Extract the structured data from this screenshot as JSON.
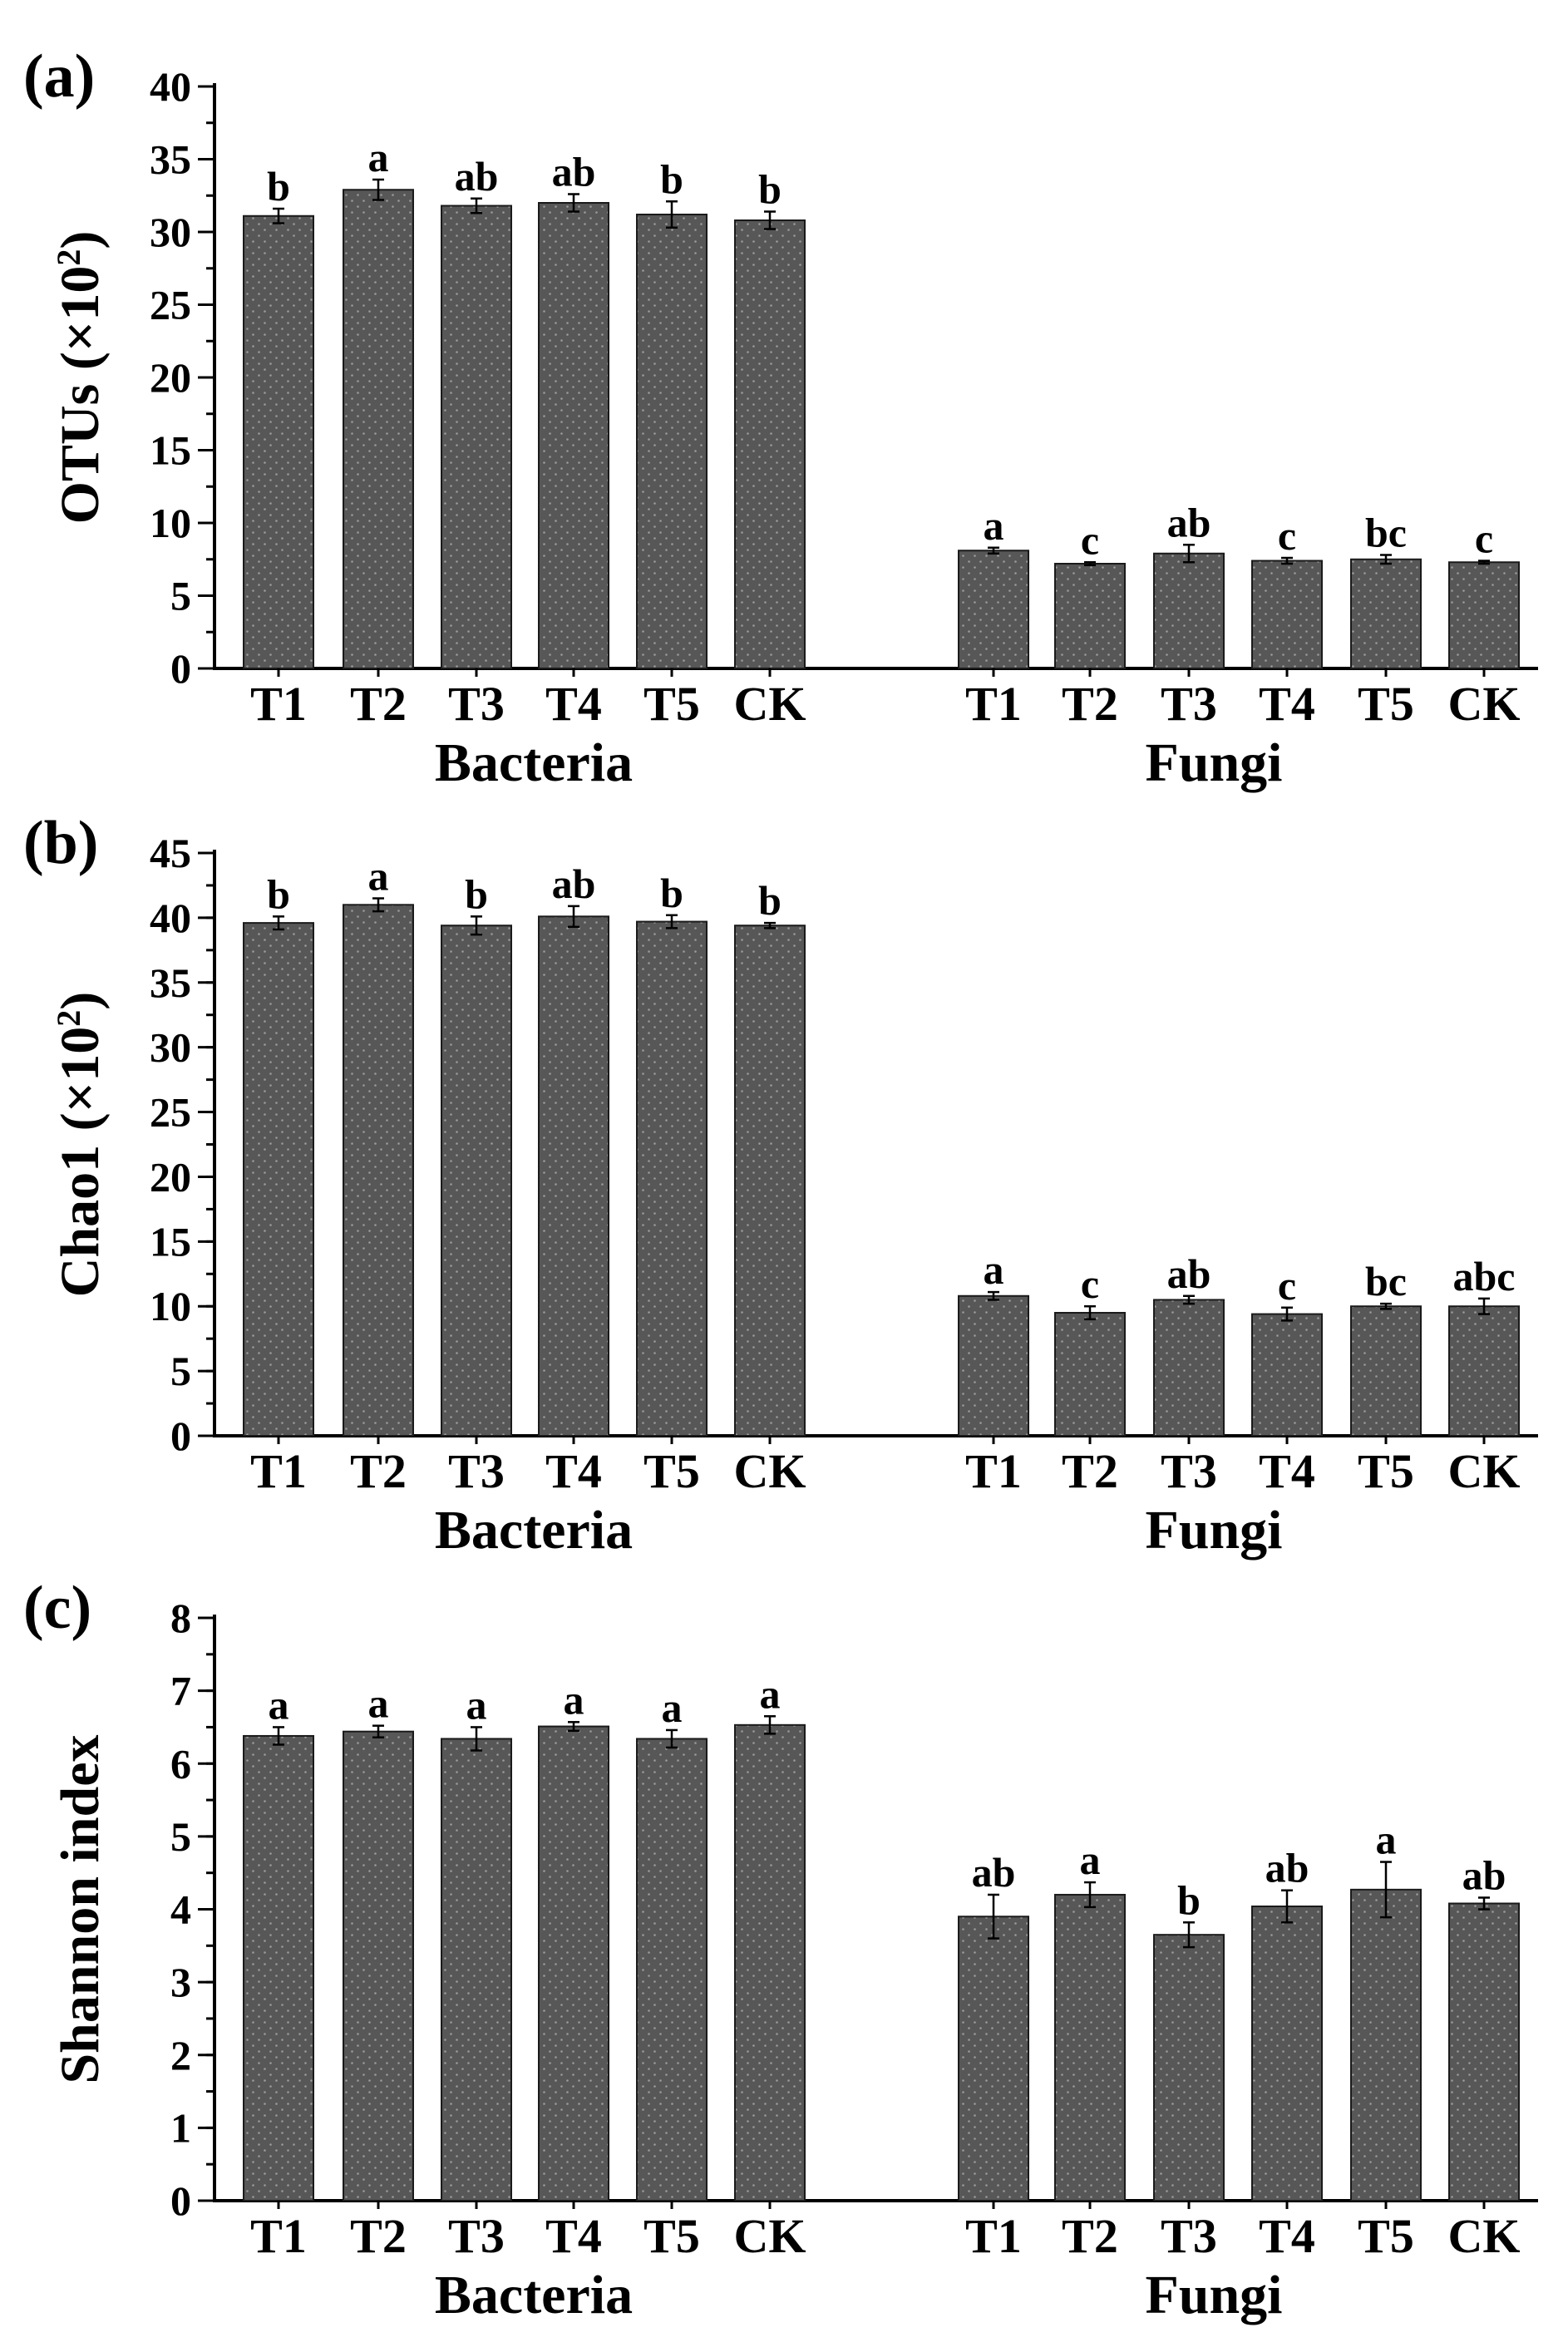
{
  "figure_colors": {
    "bar_fill": "#575757",
    "bar_dot": "#9a9a9a",
    "axis": "#000000"
  },
  "chart_data": [
    {
      "type": "bar",
      "panel_label": "(a)",
      "ylabel": "OTUs (×10²)",
      "ylabel_main": "OTUs (×10",
      "ylabel_sup": "2",
      "ylabel_end": ")",
      "ylim": [
        0,
        40
      ],
      "yticks": [
        0,
        5,
        10,
        15,
        20,
        25,
        30,
        35,
        40
      ],
      "minor_step": 2.5,
      "groups": [
        {
          "name": "Bacteria",
          "categories": [
            "T1",
            "T2",
            "T3",
            "T4",
            "T5",
            "CK"
          ],
          "values": [
            31.1,
            32.9,
            31.8,
            32.0,
            31.2,
            30.8
          ],
          "errors": [
            0.5,
            0.7,
            0.5,
            0.6,
            0.9,
            0.6
          ],
          "letters": [
            "b",
            "a",
            "ab",
            "ab",
            "b",
            "b"
          ]
        },
        {
          "name": "Fungi",
          "categories": [
            "T1",
            "T2",
            "T3",
            "T4",
            "T5",
            "CK"
          ],
          "values": [
            8.1,
            7.2,
            7.9,
            7.4,
            7.5,
            7.3
          ],
          "errors": [
            0.2,
            0.1,
            0.6,
            0.2,
            0.3,
            0.1
          ],
          "letters": [
            "a",
            "c",
            "ab",
            "c",
            "bc",
            "c"
          ]
        }
      ]
    },
    {
      "type": "bar",
      "panel_label": "(b)",
      "ylabel": "Chao1 (×10²)",
      "ylabel_main": "Chao1 (×10",
      "ylabel_sup": "2",
      "ylabel_end": ")",
      "ylim": [
        0,
        45
      ],
      "yticks": [
        0,
        5,
        10,
        15,
        20,
        25,
        30,
        35,
        40,
        45
      ],
      "minor_step": 2.5,
      "groups": [
        {
          "name": "Bacteria",
          "categories": [
            "T1",
            "T2",
            "T3",
            "T4",
            "T5",
            "CK"
          ],
          "values": [
            39.6,
            41.0,
            39.4,
            40.1,
            39.7,
            39.4
          ],
          "errors": [
            0.5,
            0.5,
            0.7,
            0.8,
            0.5,
            0.2
          ],
          "letters": [
            "b",
            "a",
            "b",
            "ab",
            "b",
            "b"
          ]
        },
        {
          "name": "Fungi",
          "categories": [
            "T1",
            "T2",
            "T3",
            "T4",
            "T5",
            "CK"
          ],
          "values": [
            10.8,
            9.5,
            10.5,
            9.4,
            10.0,
            10.0
          ],
          "errors": [
            0.3,
            0.5,
            0.3,
            0.5,
            0.2,
            0.6
          ],
          "letters": [
            "a",
            "c",
            "ab",
            "c",
            "bc",
            "abc"
          ]
        }
      ]
    },
    {
      "type": "bar",
      "panel_label": "(c)",
      "ylabel": "Shannon index",
      "ylabel_main": "Shannon index",
      "ylabel_sup": "",
      "ylabel_end": "",
      "ylim": [
        0,
        8
      ],
      "yticks": [
        0,
        1,
        2,
        3,
        4,
        5,
        6,
        7,
        8
      ],
      "minor_step": 0.5,
      "groups": [
        {
          "name": "Bacteria",
          "categories": [
            "T1",
            "T2",
            "T3",
            "T4",
            "T5",
            "CK"
          ],
          "values": [
            6.38,
            6.44,
            6.34,
            6.51,
            6.34,
            6.53
          ],
          "errors": [
            0.12,
            0.08,
            0.16,
            0.06,
            0.12,
            0.12
          ],
          "letters": [
            "a",
            "a",
            "a",
            "a",
            "a",
            "a"
          ]
        },
        {
          "name": "Fungi",
          "categories": [
            "T1",
            "T2",
            "T3",
            "T4",
            "T5",
            "CK"
          ],
          "values": [
            3.9,
            4.2,
            3.65,
            4.04,
            4.27,
            4.08
          ],
          "errors": [
            0.3,
            0.17,
            0.17,
            0.22,
            0.38,
            0.08
          ],
          "letters": [
            "ab",
            "a",
            "b",
            "ab",
            "a",
            "ab"
          ]
        }
      ]
    }
  ]
}
